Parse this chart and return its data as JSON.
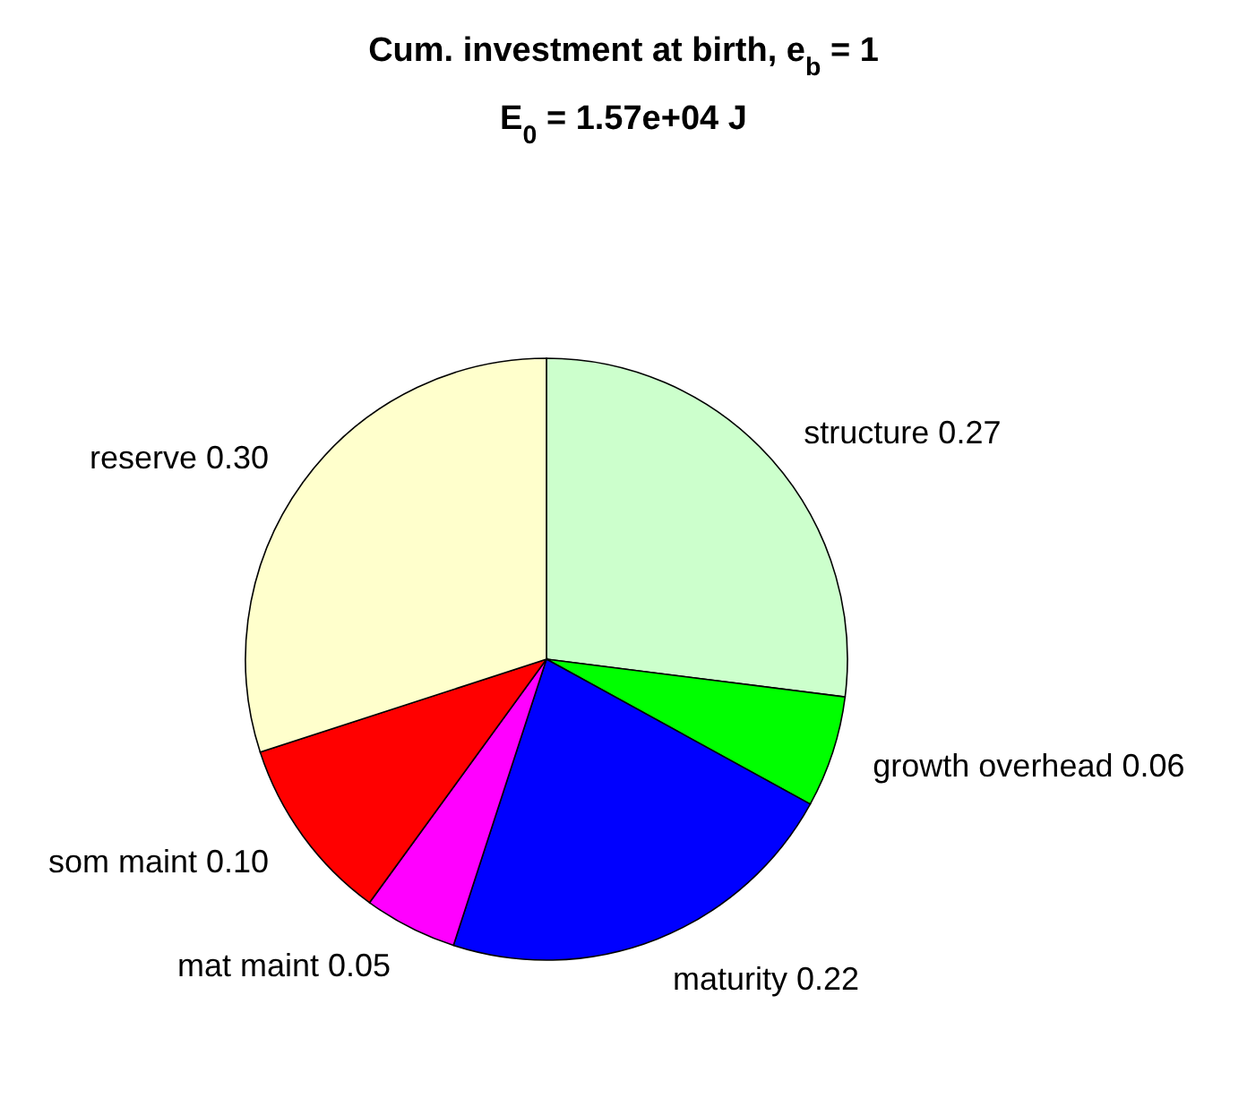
{
  "chart_data": {
    "type": "pie",
    "title": "Cum. investment at birth, e$_{b}$ = 1",
    "subtitle": "E$_{0}$ = 1.57e+04 J",
    "categories": [
      "structure",
      "growth overhead",
      "maturity",
      "mat maint",
      "som maint",
      "reserve"
    ],
    "values": [
      0.27,
      0.06,
      0.22,
      0.05,
      0.1,
      0.3
    ],
    "value_labels": [
      "0.27",
      "0.06",
      "0.22",
      "0.05",
      "0.10",
      "0.30"
    ],
    "colors": [
      "#ccffcc",
      "#00ff00",
      "#0000ff",
      "#ff00ff",
      "#ff0000",
      "#ffffcc"
    ]
  }
}
